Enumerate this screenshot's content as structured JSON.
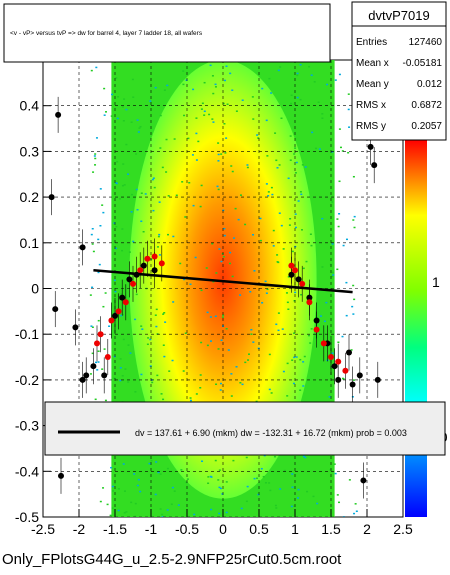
{
  "chart_data": {
    "type": "scatter",
    "title": "<v - vP>       versus  tvP =>  dw for barrel 4, layer 7 ladder 18, all wafers",
    "xlabel": "",
    "ylabel": "",
    "xlim": [
      -2.5,
      2.5
    ],
    "ylim": [
      -0.5,
      0.5
    ],
    "x_ticks": [
      "-2.5",
      "-2",
      "-1.5",
      "-1",
      "-0.5",
      "0",
      "0.5",
      "1",
      "1.5",
      "2",
      "2.5"
    ],
    "y_ticks": [
      "-0.5",
      "-0.4",
      "-0.3",
      "-0.2",
      "-0.1",
      "0",
      "0.1",
      "0.2",
      "0.3",
      "0.4"
    ],
    "grid": true,
    "colorbar_ticks": [
      "1",
      "10"
    ],
    "stats": {
      "name": "dvtvP7019",
      "rows": [
        {
          "label": "Entries",
          "value": "127460"
        },
        {
          "label": "Mean x",
          "value": "-0.05181"
        },
        {
          "label": "Mean y",
          "value": "0.012"
        },
        {
          "label": "RMS x",
          "value": "0.6872"
        },
        {
          "label": "RMS y",
          "value": "0.2057"
        }
      ]
    },
    "fit_legend": "dv =  137.61 +  6.90 (mkm) dw = -132.31 + 16.72 (mkm) prob = 0.003",
    "fit_line": {
      "x": [
        -1.8,
        1.8
      ],
      "y": [
        0.04,
        -0.008
      ]
    },
    "black_points": [
      {
        "x": -2.29,
        "y": 0.38
      },
      {
        "x": -2.38,
        "y": 0.2
      },
      {
        "x": -1.95,
        "y": 0.09
      },
      {
        "x": -2.33,
        "y": -0.045
      },
      {
        "x": -2.05,
        "y": -0.085
      },
      {
        "x": -1.9,
        "y": -0.19
      },
      {
        "x": -1.95,
        "y": -0.2
      },
      {
        "x": -1.8,
        "y": -0.17
      },
      {
        "x": -1.65,
        "y": -0.19
      },
      {
        "x": -1.5,
        "y": -0.06
      },
      {
        "x": -1.4,
        "y": -0.02
      },
      {
        "x": -1.3,
        "y": 0.02
      },
      {
        "x": -1.2,
        "y": 0.03
      },
      {
        "x": -1.1,
        "y": 0.05
      },
      {
        "x": -0.95,
        "y": 0.04
      },
      {
        "x": 0.95,
        "y": 0.03
      },
      {
        "x": 1.05,
        "y": 0.02
      },
      {
        "x": 1.2,
        "y": -0.02
      },
      {
        "x": 1.3,
        "y": -0.07
      },
      {
        "x": 1.45,
        "y": -0.12
      },
      {
        "x": 1.55,
        "y": -0.17
      },
      {
        "x": 1.6,
        "y": -0.2
      },
      {
        "x": 1.75,
        "y": -0.14
      },
      {
        "x": 1.8,
        "y": -0.21
      },
      {
        "x": 1.9,
        "y": -0.19
      },
      {
        "x": 2.05,
        "y": 0.31
      },
      {
        "x": 2.1,
        "y": 0.27
      },
      {
        "x": 2.15,
        "y": -0.2
      },
      {
        "x": -2.25,
        "y": -0.41
      },
      {
        "x": 1.95,
        "y": -0.42
      }
    ],
    "red_points": [
      {
        "x": -1.75,
        "y": -0.12
      },
      {
        "x": -1.7,
        "y": -0.1
      },
      {
        "x": -1.6,
        "y": -0.15
      },
      {
        "x": -1.55,
        "y": -0.07
      },
      {
        "x": -1.45,
        "y": -0.05
      },
      {
        "x": -1.35,
        "y": -0.03
      },
      {
        "x": -1.25,
        "y": 0.01
      },
      {
        "x": -1.15,
        "y": 0.04
      },
      {
        "x": -1.05,
        "y": 0.065
      },
      {
        "x": -0.95,
        "y": 0.07
      },
      {
        "x": -0.85,
        "y": 0.055
      },
      {
        "x": 0.95,
        "y": 0.05
      },
      {
        "x": 1.0,
        "y": 0.04
      },
      {
        "x": 1.1,
        "y": 0.01
      },
      {
        "x": 1.2,
        "y": -0.03
      },
      {
        "x": 1.3,
        "y": -0.09
      },
      {
        "x": 1.4,
        "y": -0.12
      },
      {
        "x": 1.5,
        "y": -0.15
      },
      {
        "x": 1.6,
        "y": -0.16
      },
      {
        "x": 1.7,
        "y": -0.18
      }
    ]
  },
  "footer": "Only_FPlotsG44G_u_2.5-2.9NFP25rCut0.5cm.root"
}
